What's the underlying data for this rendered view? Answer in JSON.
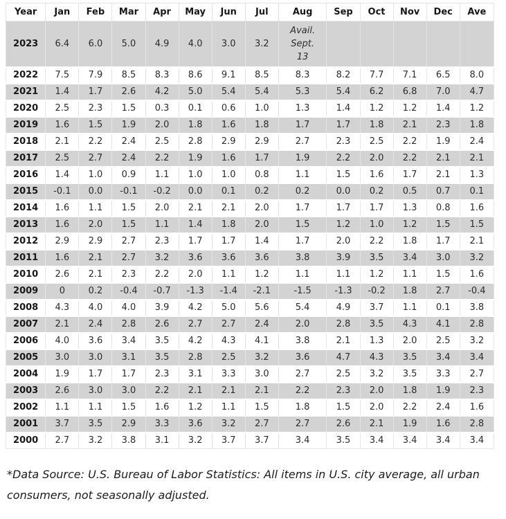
{
  "colors": {
    "row_shade": "#d3d3d3",
    "border": "#e4e4e4",
    "text": "#2b2b2b",
    "heading_text": "#181818"
  },
  "footnote": "*Data Source: U.S. Bureau of Labor Statistics: All items in U.S. city average, all urban consumers, not seasonally adjusted.",
  "chart_data": {
    "type": "table",
    "columns": [
      "Year",
      "Jan",
      "Feb",
      "Mar",
      "Apr",
      "May",
      "Jun",
      "Jul",
      "Aug",
      "Sep",
      "Oct",
      "Nov",
      "Dec",
      "Ave"
    ],
    "rows": [
      {
        "year": "2023",
        "values": [
          "6.4",
          "6.0",
          "5.0",
          "4.9",
          "4.0",
          "3.0",
          "3.2",
          "Avail.\nSept.\n13",
          "",
          "",
          "",
          "",
          ""
        ]
      },
      {
        "year": "2022",
        "values": [
          "7.5",
          "7.9",
          "8.5",
          "8.3",
          "8.6",
          "9.1",
          "8.5",
          "8.3",
          "8.2",
          "7.7",
          "7.1",
          "6.5",
          "8.0"
        ]
      },
      {
        "year": "2021",
        "values": [
          "1.4",
          "1.7",
          "2.6",
          "4.2",
          "5.0",
          "5.4",
          "5.4",
          "5.3",
          "5.4",
          "6.2",
          "6.8",
          "7.0",
          "4.7"
        ]
      },
      {
        "year": "2020",
        "values": [
          "2.5",
          "2.3",
          "1.5",
          "0.3",
          "0.1",
          "0.6",
          "1.0",
          "1.3",
          "1.4",
          "1.2",
          "1.2",
          "1.4",
          "1.2"
        ]
      },
      {
        "year": "2019",
        "values": [
          "1.6",
          "1.5",
          "1.9",
          "2.0",
          "1.8",
          "1.6",
          "1.8",
          "1.7",
          "1.7",
          "1.8",
          "2.1",
          "2.3",
          "1.8"
        ]
      },
      {
        "year": "2018",
        "values": [
          "2.1",
          "2.2",
          "2.4",
          "2.5",
          "2.8",
          "2.9",
          "2.9",
          "2.7",
          "2.3",
          "2.5",
          "2.2",
          "1.9",
          "2.4"
        ]
      },
      {
        "year": "2017",
        "values": [
          "2.5",
          "2.7",
          "2.4",
          "2.2",
          "1.9",
          "1.6",
          "1.7",
          "1.9",
          "2.2",
          "2.0",
          "2.2",
          "2.1",
          "2.1"
        ]
      },
      {
        "year": "2016",
        "values": [
          "1.4",
          "1.0",
          "0.9",
          "1.1",
          "1.0",
          "1.0",
          "0.8",
          "1.1",
          "1.5",
          "1.6",
          "1.7",
          "2.1",
          "1.3"
        ]
      },
      {
        "year": "2015",
        "values": [
          "-0.1",
          "0.0",
          "-0.1",
          "-0.2",
          "0.0",
          "0.1",
          "0.2",
          "0.2",
          "0.0",
          "0.2",
          "0.5",
          "0.7",
          "0.1"
        ]
      },
      {
        "year": "2014",
        "values": [
          "1.6",
          "1.1",
          "1.5",
          "2.0",
          "2.1",
          "2.1",
          "2.0",
          "1.7",
          "1.7",
          "1.7",
          "1.3",
          "0.8",
          "1.6"
        ]
      },
      {
        "year": "2013",
        "values": [
          "1.6",
          "2.0",
          "1.5",
          "1.1",
          "1.4",
          "1.8",
          "2.0",
          "1.5",
          "1.2",
          "1.0",
          "1.2",
          "1.5",
          "1.5"
        ]
      },
      {
        "year": "2012",
        "values": [
          "2.9",
          "2.9",
          "2.7",
          "2.3",
          "1.7",
          "1.7",
          "1.4",
          "1.7",
          "2.0",
          "2.2",
          "1.8",
          "1.7",
          "2.1"
        ]
      },
      {
        "year": "2011",
        "values": [
          "1.6",
          "2.1",
          "2.7",
          "3.2",
          "3.6",
          "3.6",
          "3.6",
          "3.8",
          "3.9",
          "3.5",
          "3.4",
          "3.0",
          "3.2"
        ]
      },
      {
        "year": "2010",
        "values": [
          "2.6",
          "2.1",
          "2.3",
          "2.2",
          "2.0",
          "1.1",
          "1.2",
          "1.1",
          "1.1",
          "1.2",
          "1.1",
          "1.5",
          "1.6"
        ]
      },
      {
        "year": "2009",
        "values": [
          "0",
          "0.2",
          "-0.4",
          "-0.7",
          "-1.3",
          "-1.4",
          "-2.1",
          "-1.5",
          "-1.3",
          "-0.2",
          "1.8",
          "2.7",
          "-0.4"
        ]
      },
      {
        "year": "2008",
        "values": [
          "4.3",
          "4.0",
          "4.0",
          "3.9",
          "4.2",
          "5.0",
          "5.6",
          "5.4",
          "4.9",
          "3.7",
          "1.1",
          "0.1",
          "3.8"
        ]
      },
      {
        "year": "2007",
        "values": [
          "2.1",
          "2.4",
          "2.8",
          "2.6",
          "2.7",
          "2.7",
          "2.4",
          "2.0",
          "2.8",
          "3.5",
          "4.3",
          "4.1",
          "2.8"
        ]
      },
      {
        "year": "2006",
        "values": [
          "4.0",
          "3.6",
          "3.4",
          "3.5",
          "4.2",
          "4.3",
          "4.1",
          "3.8",
          "2.1",
          "1.3",
          "2.0",
          "2.5",
          "3.2"
        ]
      },
      {
        "year": "2005",
        "values": [
          "3.0",
          "3.0",
          "3.1",
          "3.5",
          "2.8",
          "2.5",
          "3.2",
          "3.6",
          "4.7",
          "4.3",
          "3.5",
          "3.4",
          "3.4"
        ]
      },
      {
        "year": "2004",
        "values": [
          "1.9",
          "1.7",
          "1.7",
          "2.3",
          "3.1",
          "3.3",
          "3.0",
          "2.7",
          "2.5",
          "3.2",
          "3.5",
          "3.3",
          "2.7"
        ]
      },
      {
        "year": "2003",
        "values": [
          "2.6",
          "3.0",
          "3.0",
          "2.2",
          "2.1",
          "2.1",
          "2.1",
          "2.2",
          "2.3",
          "2.0",
          "1.8",
          "1.9",
          "2.3"
        ]
      },
      {
        "year": "2002",
        "values": [
          "1.1",
          "1.1",
          "1.5",
          "1.6",
          "1.2",
          "1.1",
          "1.5",
          "1.8",
          "1.5",
          "2.0",
          "2.2",
          "2.4",
          "1.6"
        ]
      },
      {
        "year": "2001",
        "values": [
          "3.7",
          "3.5",
          "2.9",
          "3.3",
          "3.6",
          "3.2",
          "2.7",
          "2.7",
          "2.6",
          "2.1",
          "1.9",
          "1.6",
          "2.8"
        ]
      },
      {
        "year": "2000",
        "values": [
          "2.7",
          "3.2",
          "3.8",
          "3.1",
          "3.2",
          "3.7",
          "3.7",
          "3.4",
          "3.5",
          "3.4",
          "3.4",
          "3.4",
          "3.4"
        ]
      }
    ]
  }
}
